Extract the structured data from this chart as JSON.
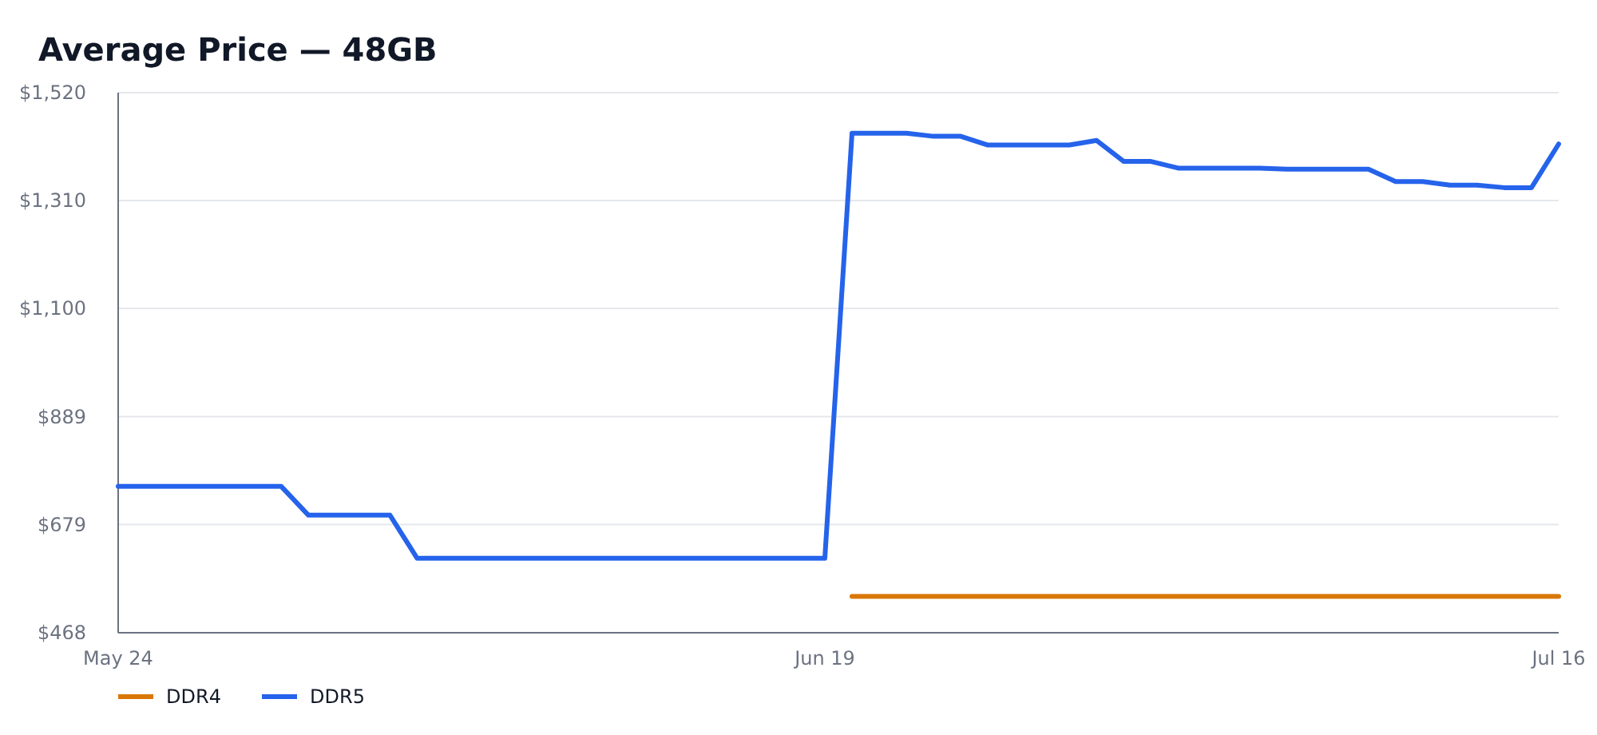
{
  "chart_data": {
    "type": "line",
    "title": "Average Price — 48GB",
    "xlim": [
      "--05-24",
      "--07-16"
    ],
    "xticks": [
      {
        "value": "--05-24",
        "label": "May 24"
      },
      {
        "value": "--06-19",
        "label": "Jun 19"
      },
      {
        "value": "--07-16",
        "label": "Jul 16"
      }
    ],
    "ylim": [
      468,
      1520
    ],
    "yticks": [
      {
        "value": 468,
        "label": "$468"
      },
      {
        "value": 679,
        "label": "$679"
      },
      {
        "value": 889,
        "label": "$889"
      },
      {
        "value": 1100,
        "label": "$1,100"
      },
      {
        "value": 1310,
        "label": "$1,310"
      },
      {
        "value": 1520,
        "label": "$1,520"
      }
    ],
    "grid": "y",
    "legend": "bottom left",
    "line_style": "solid",
    "series": [
      {
        "name": "DDR4",
        "color": "#d97706",
        "x": [
          "--06-20",
          "--06-21",
          "--06-22",
          "--06-23",
          "--06-24",
          "--06-25",
          "--06-26",
          "--06-27",
          "--06-28",
          "--06-29",
          "--06-30",
          "--07-01",
          "--07-02",
          "--07-03",
          "--07-04",
          "--07-05",
          "--07-06",
          "--07-07",
          "--07-08",
          "--07-09",
          "--07-10",
          "--07-11",
          "--07-12",
          "--07-13",
          "--07-14",
          "--07-15",
          "--07-16"
        ],
        "values": [
          539,
          539,
          539,
          539,
          539,
          539,
          539,
          539,
          539,
          539,
          539,
          539,
          539,
          539,
          539,
          539,
          539,
          539,
          539,
          539,
          539,
          539,
          539,
          539,
          539,
          539,
          539
        ]
      },
      {
        "name": "DDR5",
        "color": "#2563eb",
        "x": [
          "--05-24",
          "--05-25",
          "--05-26",
          "--05-27",
          "--05-28",
          "--05-29",
          "--05-30",
          "--05-31",
          "--06-01",
          "--06-02",
          "--06-03",
          "--06-04",
          "--06-05",
          "--06-06",
          "--06-07",
          "--06-08",
          "--06-09",
          "--06-10",
          "--06-11",
          "--06-12",
          "--06-13",
          "--06-14",
          "--06-15",
          "--06-16",
          "--06-17",
          "--06-18",
          "--06-19",
          "--06-20",
          "--06-21",
          "--06-22",
          "--06-23",
          "--06-24",
          "--06-25",
          "--06-26",
          "--06-27",
          "--06-28",
          "--06-29",
          "--06-30",
          "--07-01",
          "--07-02",
          "--07-03",
          "--07-04",
          "--07-05",
          "--07-06",
          "--07-07",
          "--07-08",
          "--07-09",
          "--07-10",
          "--07-11",
          "--07-12",
          "--07-13",
          "--07-14",
          "--07-15",
          "--07-16"
        ],
        "values": [
          753,
          753,
          753,
          753,
          753,
          753,
          753,
          697,
          697,
          697,
          697,
          613,
          613,
          613,
          613,
          613,
          613,
          613,
          613,
          613,
          613,
          613,
          613,
          613,
          613,
          613,
          613,
          1441,
          1441,
          1441,
          1435,
          1435,
          1418,
          1418,
          1418,
          1418,
          1427,
          1386,
          1386,
          1373,
          1373,
          1373,
          1373,
          1371,
          1371,
          1371,
          1371,
          1347,
          1347,
          1340,
          1340,
          1335,
          1335,
          1420
        ]
      }
    ]
  }
}
